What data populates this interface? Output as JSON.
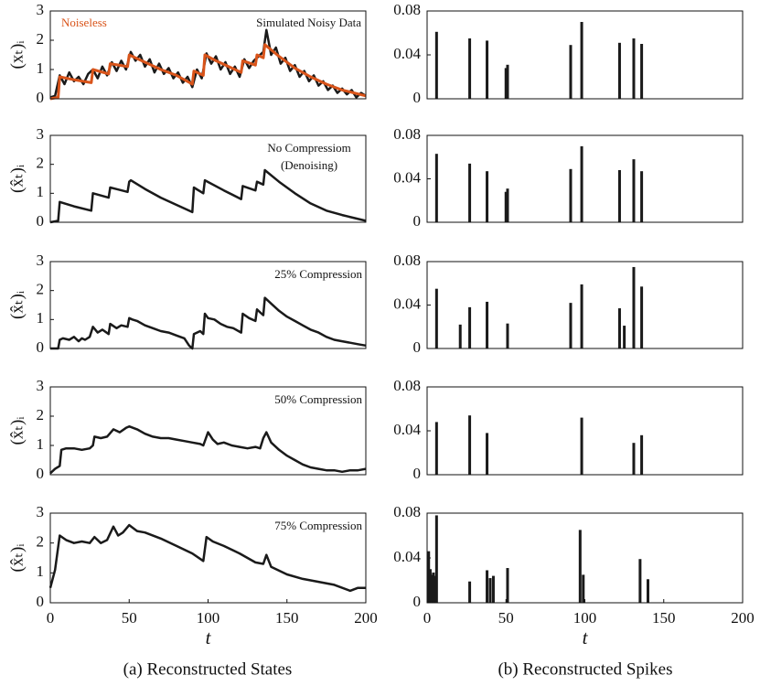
{
  "chart_data": [
    {
      "type": "line",
      "ylabel": "(xₜ)ᵢ",
      "xlim": [
        0,
        200
      ],
      "ylim": [
        0,
        3
      ],
      "yticks": [
        0,
        1,
        2,
        3
      ],
      "legend": "top",
      "series": [
        {
          "name": "Simulated Noisy Data",
          "color": "#1a1a1a",
          "x": [
            0,
            3,
            6,
            9,
            12,
            15,
            18,
            21,
            24,
            27,
            30,
            33,
            36,
            39,
            42,
            45,
            48,
            51,
            54,
            57,
            60,
            63,
            66,
            69,
            72,
            75,
            78,
            81,
            84,
            87,
            90,
            93,
            96,
            99,
            102,
            105,
            108,
            111,
            114,
            117,
            120,
            123,
            126,
            129,
            132,
            135,
            137,
            140,
            143,
            146,
            149,
            152,
            155,
            158,
            161,
            164,
            167,
            170,
            173,
            176,
            179,
            182,
            185,
            188,
            191,
            194,
            197,
            200
          ],
          "values": [
            0.05,
            0.1,
            0.8,
            0.5,
            0.9,
            0.6,
            0.75,
            0.5,
            0.85,
            1.0,
            0.7,
            1.1,
            0.8,
            1.25,
            0.95,
            1.3,
            1.0,
            1.6,
            1.3,
            1.5,
            1.1,
            1.35,
            0.9,
            1.2,
            0.85,
            1.05,
            0.7,
            0.9,
            0.55,
            0.75,
            0.4,
            1.0,
            0.7,
            1.55,
            1.2,
            1.45,
            1.0,
            1.25,
            0.85,
            1.1,
            0.75,
            1.35,
            1.05,
            1.3,
            1.45,
            1.6,
            2.35,
            1.5,
            1.75,
            1.2,
            1.4,
            0.95,
            1.15,
            0.75,
            0.95,
            0.6,
            0.8,
            0.45,
            0.6,
            0.3,
            0.45,
            0.2,
            0.35,
            0.15,
            0.3,
            0.05,
            0.2,
            0.1
          ]
        },
        {
          "name": "Noiseless",
          "color": "#d9541a",
          "x": [
            0,
            5,
            6,
            15,
            26,
            27,
            37,
            38,
            49,
            50,
            52,
            60,
            70,
            80,
            90,
            91,
            97,
            98,
            105,
            115,
            121,
            122,
            130,
            131,
            135,
            136,
            145,
            155,
            165,
            175,
            185,
            200
          ],
          "values": [
            0,
            0.05,
            0.75,
            0.65,
            0.55,
            1.0,
            0.85,
            1.2,
            1.1,
            1.5,
            1.45,
            1.25,
            1.0,
            0.8,
            0.5,
            0.95,
            0.8,
            1.5,
            1.3,
            1.05,
            0.9,
            1.3,
            1.15,
            1.5,
            1.4,
            1.85,
            1.45,
            1.05,
            0.75,
            0.5,
            0.3,
            0.1
          ]
        }
      ]
    },
    {
      "type": "line",
      "ylabel": "(x̂ₜ)ᵢ",
      "xlim": [
        0,
        200
      ],
      "ylim": [
        0,
        3
      ],
      "yticks": [
        0,
        1,
        2,
        3
      ],
      "annotations": [
        "No Compressiom",
        "(Denoising)"
      ],
      "series": [
        {
          "color": "#1a1a1a",
          "x": [
            0,
            5,
            6,
            15,
            26,
            27,
            37,
            38,
            49,
            50,
            51,
            60,
            70,
            80,
            90,
            91,
            97,
            98,
            110,
            121,
            122,
            130,
            131,
            135,
            136,
            145,
            155,
            165,
            175,
            185,
            200
          ],
          "values": [
            0,
            0.05,
            0.7,
            0.55,
            0.4,
            1.0,
            0.85,
            1.2,
            1.05,
            1.4,
            1.45,
            1.15,
            0.85,
            0.6,
            0.35,
            1.2,
            1.0,
            1.45,
            1.1,
            0.8,
            1.25,
            1.1,
            1.4,
            1.3,
            1.8,
            1.4,
            1.0,
            0.65,
            0.4,
            0.25,
            0.05
          ]
        }
      ]
    },
    {
      "type": "line",
      "ylabel": "(x̂ₜ)ᵢ",
      "xlim": [
        0,
        200
      ],
      "ylim": [
        0,
        3
      ],
      "yticks": [
        0,
        1,
        2,
        3
      ],
      "annotations": [
        "25% Compression"
      ],
      "series": [
        {
          "color": "#1a1a1a",
          "x": [
            0,
            5,
            6,
            8,
            12,
            15,
            18,
            20,
            22,
            25,
            27,
            30,
            33,
            37,
            38,
            42,
            45,
            49,
            50,
            52,
            55,
            60,
            65,
            70,
            75,
            80,
            85,
            88,
            89,
            90,
            91,
            95,
            97,
            98,
            100,
            104,
            108,
            112,
            116,
            121,
            122,
            126,
            130,
            131,
            134,
            135,
            136,
            140,
            145,
            150,
            155,
            160,
            165,
            170,
            175,
            180,
            185,
            190,
            195,
            200
          ],
          "values": [
            0,
            0,
            0.3,
            0.35,
            0.3,
            0.4,
            0.25,
            0.35,
            0.3,
            0.4,
            0.75,
            0.55,
            0.65,
            0.5,
            0.85,
            0.7,
            0.8,
            0.75,
            1.05,
            1.0,
            0.95,
            0.8,
            0.7,
            0.6,
            0.55,
            0.45,
            0.35,
            0.1,
            0.05,
            0.0,
            0.5,
            0.6,
            0.5,
            1.2,
            1.05,
            1.0,
            0.85,
            0.75,
            0.7,
            0.55,
            1.2,
            1.05,
            0.95,
            1.35,
            1.2,
            1.15,
            1.75,
            1.55,
            1.3,
            1.1,
            0.95,
            0.8,
            0.65,
            0.55,
            0.4,
            0.3,
            0.25,
            0.2,
            0.15,
            0.1
          ]
        }
      ]
    },
    {
      "type": "line",
      "ylabel": "(x̂ₜ)ᵢ",
      "xlim": [
        0,
        200
      ],
      "ylim": [
        0,
        3
      ],
      "yticks": [
        0,
        1,
        2,
        3
      ],
      "annotations": [
        "50% Compression"
      ],
      "series": [
        {
          "color": "#1a1a1a",
          "x": [
            0,
            3,
            6,
            7,
            10,
            15,
            20,
            25,
            27,
            28,
            32,
            36,
            40,
            44,
            48,
            50,
            55,
            60,
            65,
            70,
            75,
            80,
            85,
            90,
            95,
            97,
            100,
            103,
            106,
            110,
            115,
            120,
            125,
            130,
            133,
            135,
            137,
            140,
            145,
            150,
            155,
            160,
            165,
            170,
            175,
            180,
            185,
            190,
            195,
            200
          ],
          "values": [
            0.05,
            0.2,
            0.3,
            0.85,
            0.9,
            0.9,
            0.85,
            0.9,
            1.0,
            1.3,
            1.25,
            1.3,
            1.55,
            1.45,
            1.6,
            1.65,
            1.55,
            1.4,
            1.3,
            1.25,
            1.25,
            1.2,
            1.15,
            1.1,
            1.05,
            1.0,
            1.45,
            1.2,
            1.05,
            1.1,
            1.0,
            0.95,
            0.9,
            0.95,
            0.9,
            1.25,
            1.45,
            1.1,
            0.85,
            0.65,
            0.5,
            0.35,
            0.25,
            0.2,
            0.15,
            0.15,
            0.1,
            0.15,
            0.15,
            0.2
          ]
        }
      ]
    },
    {
      "type": "line",
      "ylabel": "(x̂ₜ)ᵢ",
      "xlabel": "t",
      "xlim": [
        0,
        200
      ],
      "xticks": [
        0,
        50,
        100,
        150,
        200
      ],
      "ylim": [
        0,
        3
      ],
      "yticks": [
        0,
        1,
        2,
        3
      ],
      "annotations": [
        "75% Compression"
      ],
      "series": [
        {
          "color": "#1a1a1a",
          "x": [
            0,
            3,
            6,
            10,
            15,
            20,
            25,
            28,
            32,
            36,
            40,
            43,
            46,
            50,
            55,
            60,
            70,
            80,
            90,
            97,
            99,
            103,
            110,
            120,
            130,
            135,
            137,
            140,
            150,
            160,
            170,
            180,
            190,
            195,
            200
          ],
          "values": [
            0.5,
            1.1,
            2.25,
            2.1,
            2.0,
            2.05,
            2.0,
            2.2,
            2.0,
            2.1,
            2.55,
            2.25,
            2.35,
            2.6,
            2.4,
            2.35,
            2.15,
            1.9,
            1.65,
            1.4,
            2.2,
            2.05,
            1.9,
            1.65,
            1.35,
            1.3,
            1.6,
            1.2,
            0.95,
            0.8,
            0.7,
            0.6,
            0.4,
            0.5,
            0.5
          ]
        }
      ]
    },
    {
      "type": "bar",
      "color": "#1a1a1a",
      "xlim": [
        0,
        200
      ],
      "ylim": [
        0,
        0.08
      ],
      "yticks": [
        0,
        0.04,
        0.08
      ],
      "x": [
        6,
        27,
        38,
        50,
        51,
        91,
        98,
        122,
        131,
        136
      ],
      "values": [
        0.061,
        0.055,
        0.053,
        0.028,
        0.031,
        0.049,
        0.07,
        0.051,
        0.055,
        0.05
      ]
    },
    {
      "type": "bar",
      "color": "#1a1a1a",
      "xlim": [
        0,
        200
      ],
      "ylim": [
        0,
        0.08
      ],
      "yticks": [
        0,
        0.04,
        0.08
      ],
      "x": [
        6,
        27,
        38,
        50,
        51,
        91,
        98,
        122,
        131,
        136
      ],
      "values": [
        0.063,
        0.054,
        0.047,
        0.028,
        0.031,
        0.049,
        0.07,
        0.048,
        0.058,
        0.047
      ]
    },
    {
      "type": "bar",
      "color": "#1a1a1a",
      "xlim": [
        0,
        200
      ],
      "ylim": [
        0,
        0.08
      ],
      "yticks": [
        0,
        0.04,
        0.08
      ],
      "x": [
        6,
        21,
        27,
        38,
        51,
        91,
        98,
        122,
        125,
        131,
        136
      ],
      "values": [
        0.055,
        0.022,
        0.038,
        0.043,
        0.023,
        0.042,
        0.059,
        0.037,
        0.021,
        0.075,
        0.057
      ]
    },
    {
      "type": "bar",
      "color": "#1a1a1a",
      "xlim": [
        0,
        200
      ],
      "ylim": [
        0,
        0.08
      ],
      "yticks": [
        0,
        0.04,
        0.08
      ],
      "x": [
        6,
        27,
        38,
        98,
        131,
        136
      ],
      "values": [
        0.048,
        0.054,
        0.038,
        0.052,
        0.029,
        0.036
      ]
    },
    {
      "type": "bar",
      "color": "#1a1a1a",
      "xlabel": "t",
      "xlim": [
        0,
        200
      ],
      "xticks": [
        0,
        50,
        100,
        150,
        200
      ],
      "ylim": [
        0,
        0.08
      ],
      "yticks": [
        0,
        0.04,
        0.08
      ],
      "x": [
        1,
        2,
        3,
        4,
        5,
        6,
        27,
        38,
        40,
        42,
        51,
        97,
        99,
        135,
        140
      ],
      "values": [
        0.046,
        0.03,
        0.025,
        0.027,
        0.024,
        0.078,
        0.019,
        0.029,
        0.022,
        0.024,
        0.031,
        0.065,
        0.025,
        0.039,
        0.021
      ]
    }
  ],
  "captions": [
    "(a) Reconstructed States",
    "(b) Reconstructed Spikes"
  ]
}
